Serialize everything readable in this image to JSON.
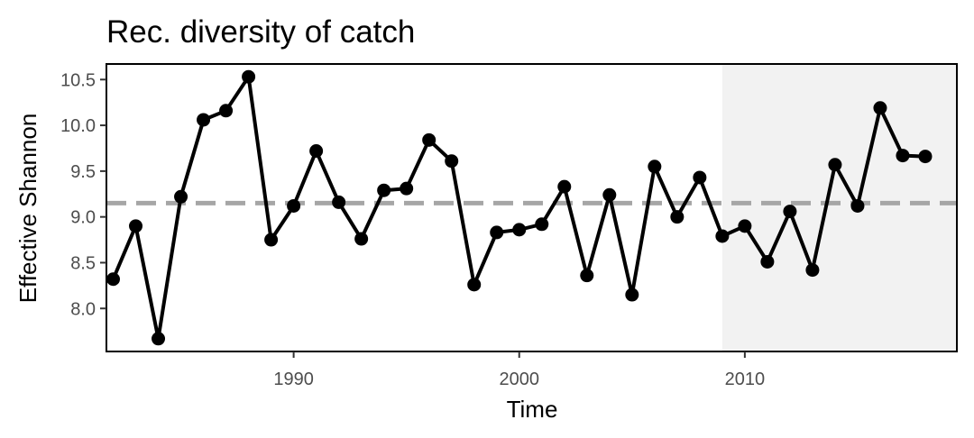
{
  "chart_data": {
    "type": "line",
    "title": "Rec. diversity of catch",
    "xlabel": "Time",
    "ylabel": "Effective Shannon",
    "xlim": [
      1981.7,
      2019.4
    ],
    "ylim": [
      7.53,
      10.67
    ],
    "xticks": [
      1990,
      2000,
      2010
    ],
    "yticks": [
      8.0,
      8.5,
      9.0,
      9.5,
      10.0,
      10.5
    ],
    "grid": false,
    "legend": "none",
    "reference_line": {
      "y": 9.15,
      "style": "dashed",
      "color": "#a6a6a6"
    },
    "shaded_region": {
      "x_start": 2009,
      "x_end": 2019.4,
      "color": "#f2f2f2"
    },
    "series": [
      {
        "color": "#000000",
        "x": [
          1982,
          1983,
          1984,
          1985,
          1986,
          1987,
          1988,
          1989,
          1990,
          1991,
          1992,
          1993,
          1994,
          1995,
          1996,
          1997,
          1998,
          1999,
          2000,
          2001,
          2002,
          2003,
          2004,
          2005,
          2006,
          2007,
          2008,
          2009,
          2010,
          2011,
          2012,
          2013,
          2014,
          2015,
          2016,
          2017,
          2018
        ],
        "values": [
          8.32,
          8.9,
          7.67,
          9.22,
          10.06,
          10.16,
          10.53,
          8.75,
          9.12,
          9.72,
          9.16,
          8.76,
          9.29,
          9.31,
          9.84,
          9.61,
          8.26,
          8.83,
          8.86,
          8.92,
          9.33,
          8.36,
          9.24,
          8.15,
          9.55,
          9.0,
          9.43,
          8.79,
          8.9,
          8.51,
          9.06,
          8.42,
          9.57,
          9.12,
          10.19,
          9.67,
          9.66
        ]
      }
    ]
  }
}
